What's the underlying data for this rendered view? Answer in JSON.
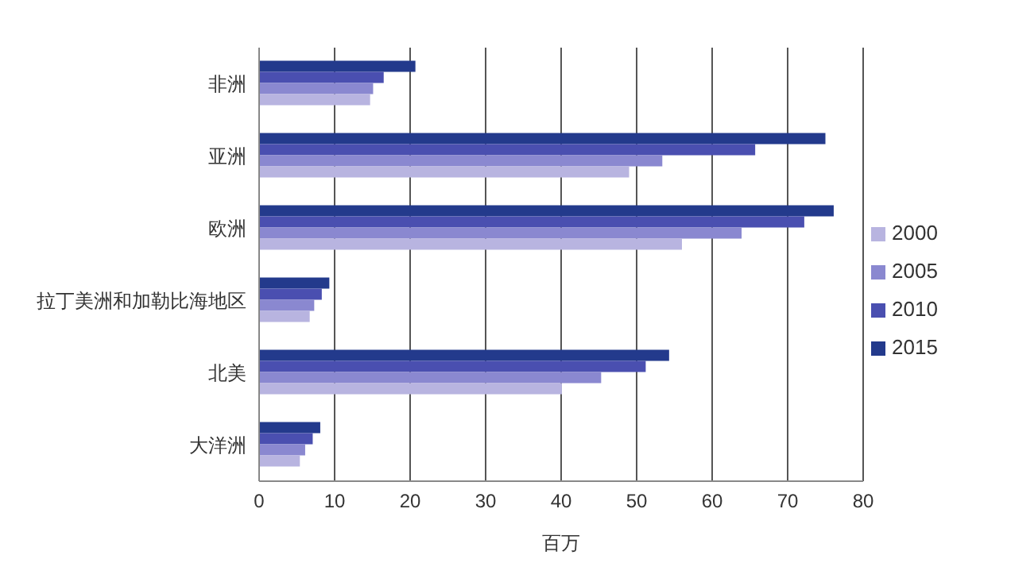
{
  "chart_data": {
    "type": "bar",
    "orientation": "horizontal",
    "xlabel": "百万",
    "categories": [
      "非洲",
      "亚洲",
      "欧洲",
      "拉丁美洲和加勒比海地区",
      "北美",
      "大洋洲"
    ],
    "series": [
      {
        "name": "2015",
        "color": "#233a8c",
        "values": [
          20.7,
          75.0,
          76.1,
          9.3,
          54.3,
          8.1
        ]
      },
      {
        "name": "2010",
        "color": "#4a4fb0",
        "values": [
          16.5,
          65.7,
          72.2,
          8.3,
          51.2,
          7.1
        ]
      },
      {
        "name": "2005",
        "color": "#8a88d0",
        "values": [
          15.1,
          53.4,
          63.9,
          7.3,
          45.3,
          6.1
        ]
      },
      {
        "name": "2000",
        "color": "#b8b4e0",
        "values": [
          14.7,
          49.0,
          56.0,
          6.7,
          40.1,
          5.4
        ]
      }
    ],
    "xlim": [
      0,
      80
    ],
    "xticks": [
      0,
      10,
      20,
      30,
      40,
      50,
      60,
      70,
      80
    ],
    "grid": "x",
    "legend": "right"
  }
}
